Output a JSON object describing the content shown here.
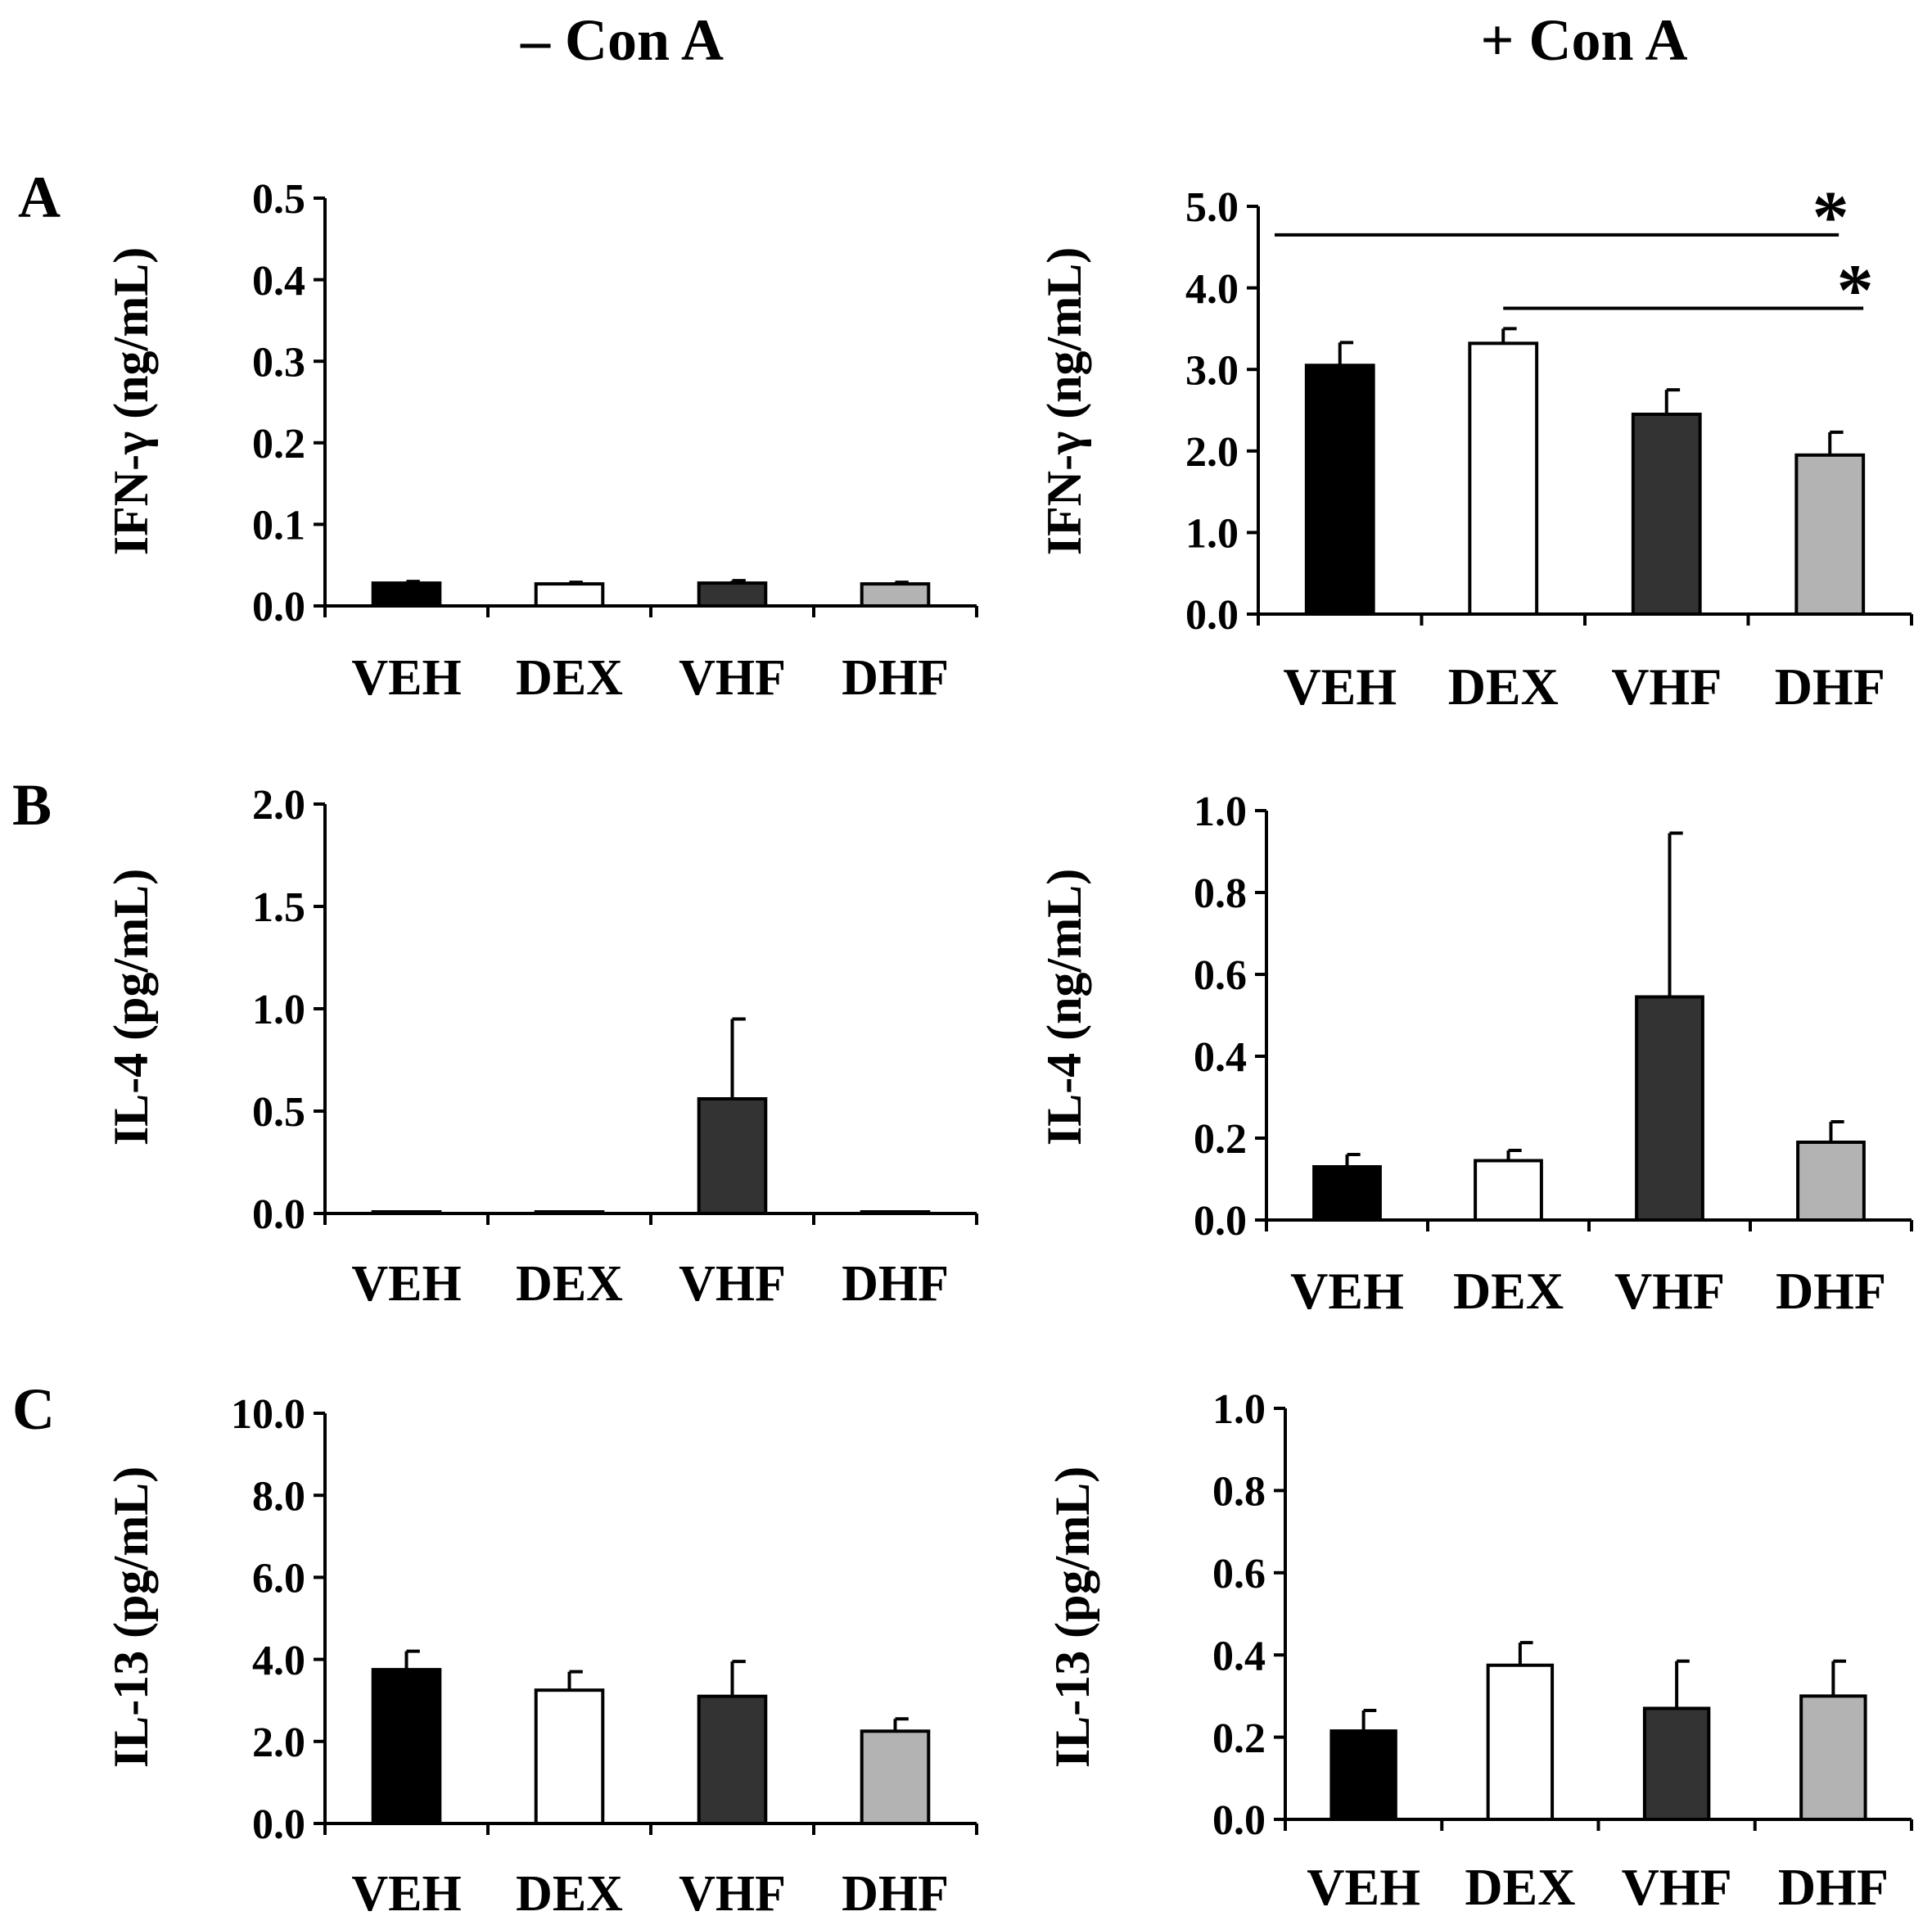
{
  "headers": {
    "left": "– Con A",
    "right": "+ Con A"
  },
  "row_labels": [
    "A",
    "B",
    "C"
  ],
  "significance_marker": "*",
  "chart_data": [
    {
      "id": "A-left",
      "type": "bar",
      "row": "A",
      "condition": "– Con A",
      "ylabel": "IFN-γ  (ng/mL)",
      "ylim": [
        0,
        0.5
      ],
      "yticks": [
        "0.0",
        "0.1",
        "0.2",
        "0.3",
        "0.4",
        "0.5"
      ],
      "categories": [
        "VEH",
        "DEX",
        "VHF",
        "DHF"
      ],
      "values": [
        0.028,
        0.027,
        0.028,
        0.027
      ],
      "errors": [
        0.002,
        0.002,
        0.003,
        0.002
      ],
      "colors": [
        "#000000",
        "#ffffff",
        "#333333",
        "#b3b3b3"
      ],
      "significance": []
    },
    {
      "id": "A-right",
      "type": "bar",
      "row": "A",
      "condition": "+ Con A",
      "ylabel": "IFN-γ (ng/mL)",
      "ylim": [
        0,
        5.0
      ],
      "yticks": [
        "0.0",
        "1.0",
        "2.0",
        "3.0",
        "4.0",
        "5.0"
      ],
      "categories": [
        "VEH",
        "DEX",
        "VHF",
        "DHF"
      ],
      "values": [
        3.05,
        3.32,
        2.45,
        1.95
      ],
      "errors": [
        0.28,
        0.18,
        0.3,
        0.28
      ],
      "colors": [
        "#000000",
        "#ffffff",
        "#333333",
        "#b3b3b3"
      ],
      "significance": [
        {
          "from": "VEH",
          "to": "DHF",
          "level": 4.65,
          "label": "*"
        },
        {
          "from": "DEX",
          "to": "DHF",
          "level": 3.75,
          "label": "*"
        }
      ]
    },
    {
      "id": "B-left",
      "type": "bar",
      "row": "B",
      "condition": "– Con A",
      "ylabel": "IL-4 (pg/mL)",
      "ylim": [
        0,
        2.0
      ],
      "yticks": [
        "0.0",
        "0.5",
        "1.0",
        "1.5",
        "2.0"
      ],
      "categories": [
        "VEH",
        "DEX",
        "VHF",
        "DHF"
      ],
      "values": [
        0.005,
        0.005,
        0.56,
        0.005
      ],
      "errors": [
        0,
        0,
        0.39,
        0
      ],
      "colors": [
        "#000000",
        "#ffffff",
        "#333333",
        "#b3b3b3"
      ],
      "significance": []
    },
    {
      "id": "B-right",
      "type": "bar",
      "row": "B",
      "condition": "+ Con A",
      "ylabel": "IL-4  (ng/mL)",
      "ylim": [
        0,
        1.0
      ],
      "yticks": [
        "0.0",
        "0.2",
        "0.4",
        "0.6",
        "0.8",
        "1.0"
      ],
      "categories": [
        "VEH",
        "DEX",
        "VHF",
        "DHF"
      ],
      "values": [
        0.13,
        0.145,
        0.545,
        0.19
      ],
      "errors": [
        0.03,
        0.025,
        0.4,
        0.05
      ],
      "colors": [
        "#000000",
        "#ffffff",
        "#333333",
        "#b3b3b3"
      ],
      "significance": []
    },
    {
      "id": "C-left",
      "type": "bar",
      "row": "C",
      "condition": "– Con A",
      "ylabel": "IL-13 (pg/mL)",
      "ylim": [
        0,
        10.0
      ],
      "yticks": [
        "0.0",
        "2.0",
        "4.0",
        "6.0",
        "8.0",
        "10.0"
      ],
      "categories": [
        "VEH",
        "DEX",
        "VHF",
        "DHF"
      ],
      "values": [
        3.75,
        3.25,
        3.1,
        2.25
      ],
      "errors": [
        0.45,
        0.45,
        0.85,
        0.3
      ],
      "colors": [
        "#000000",
        "#ffffff",
        "#333333",
        "#b3b3b3"
      ],
      "significance": []
    },
    {
      "id": "C-right",
      "type": "bar",
      "row": "C",
      "condition": "+ Con A",
      "ylabel": "IL-13  (pg/mL)",
      "ylim": [
        0,
        1.0
      ],
      "yticks": [
        "0.0",
        "0.2",
        "0.4",
        "0.6",
        "0.8",
        "1.0"
      ],
      "categories": [
        "VEH",
        "DEX",
        "VHF",
        "DHF"
      ],
      "values": [
        0.215,
        0.375,
        0.27,
        0.3
      ],
      "errors": [
        0.05,
        0.055,
        0.115,
        0.085
      ],
      "colors": [
        "#000000",
        "#ffffff",
        "#333333",
        "#b3b3b3"
      ],
      "significance": []
    }
  ]
}
